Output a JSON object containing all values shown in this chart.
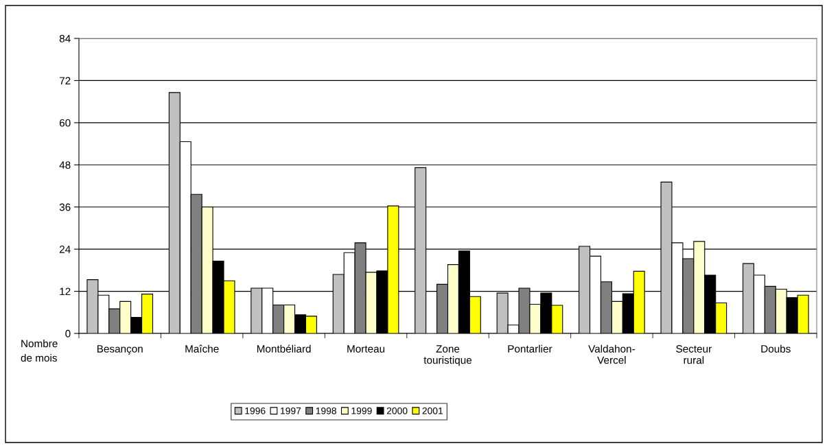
{
  "chart_data": {
    "type": "bar",
    "categories": [
      "Besançon",
      "Maîche",
      "Montbéliard",
      "Morteau",
      "Zone\ntouristique",
      "Pontarlier",
      "Valdahon-\nVercel",
      "Secteur\nrural",
      "Doubs"
    ],
    "series": [
      {
        "name": "1996",
        "color": "#c0c0c0",
        "values": [
          15.3,
          68.6,
          12.9,
          16.8,
          47.2,
          11.5,
          24.8,
          43.1,
          19.9
        ]
      },
      {
        "name": "1997",
        "color": "#ffffff",
        "values": [
          10.9,
          54.6,
          12.9,
          23.0,
          12.0,
          2.4,
          22.0,
          25.8,
          16.6
        ]
      },
      {
        "name": "1998",
        "color": "#808080",
        "values": [
          7.0,
          39.6,
          8.1,
          25.8,
          14.0,
          12.9,
          14.7,
          21.3,
          13.4
        ]
      },
      {
        "name": "1999",
        "color": "#ffffcc",
        "values": [
          9.1,
          36.0,
          8.1,
          17.4,
          19.6,
          8.3,
          9.1,
          26.2,
          12.6
        ]
      },
      {
        "name": "2000",
        "color": "#000000",
        "values": [
          4.6,
          20.6,
          5.3,
          17.8,
          23.5,
          11.5,
          11.3,
          16.6,
          10.2
        ]
      },
      {
        "name": "2001",
        "color": "#ffff00",
        "values": [
          11.2,
          15.0,
          4.9,
          36.3,
          10.5,
          8.0,
          17.7,
          8.7,
          10.9
        ]
      }
    ],
    "ylim": [
      0,
      84
    ],
    "yticks": [
      0,
      12,
      24,
      36,
      48,
      60,
      72,
      84
    ],
    "grid": "y",
    "legend": "bottom",
    "annotations": [
      "Nombre\nde mois"
    ]
  }
}
